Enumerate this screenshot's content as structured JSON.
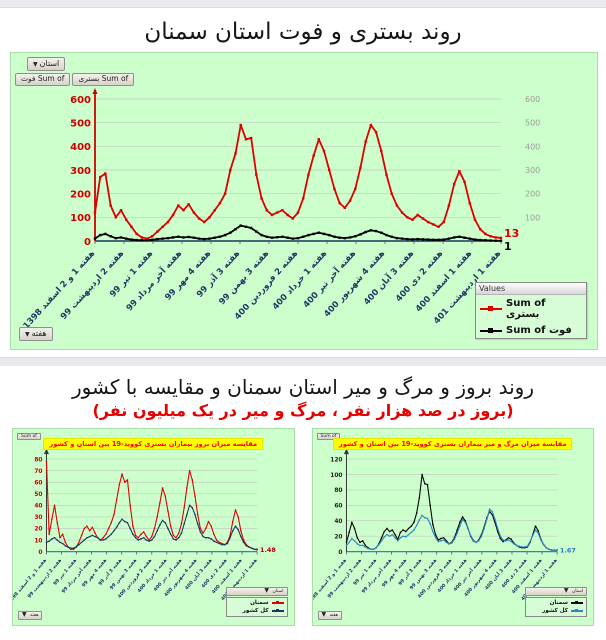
{
  "page": {
    "title1": "روند بستری و فوت استان سمنان",
    "title2": "روند بروز و مرگ و میر استان سمنان و مقایسه با کشور",
    "subtitle2": "(بروز در صد هزار نفر ، مرگ و میر در یک میلیون نفر)"
  },
  "main_chart": {
    "province_filter": "استان",
    "week_filter": "هفته",
    "value_buttons": [
      "Sum of فوت",
      "Sum of بستری"
    ],
    "legend_header": "Values"
  },
  "small_charts": {
    "value_button": "Sum of",
    "province_filter": "استان",
    "week_filter": "هفته"
  },
  "colors": {
    "panel_green": "#ccffcc",
    "title_yellow": "#ffff00",
    "accent_red": "#dd0000",
    "subtitle_red": "#e60000",
    "axis_label_navy": "#1f3864",
    "country_navy": "#17375e",
    "country_blue": "#2e86c1"
  },
  "chart_data": [
    {
      "type": "line",
      "title": "روند بستری و فوت استان سمنان",
      "xlabel": "هفته",
      "ylabel": "",
      "ylim": [
        0,
        600
      ],
      "ytick_step": 100,
      "grid": true,
      "legend_position": "bottom-right",
      "legend_header": "Values",
      "categories": [
        "هفته 1 و 2 اسفند 1398",
        "هفته 2 اردیبهشت 99",
        "هفته 1 تیر 99",
        "هفته آخر مرداد 99",
        "هفته 4 مهر 99",
        "هفته 3 آذر 99",
        "هفته 3 بهمن 99",
        "هفته 2 فروردین 400",
        "هفته 1 خرداد 400",
        "هفته آخر تیر 400",
        "هفته 4 شهریور 400",
        "هفته 3 آبان 400",
        "هفته 2 دی 400",
        "هفته 1 اسفند 400",
        "هفته 1 اردیبهشت 401"
      ],
      "series": [
        {
          "name": "Sum of بستری",
          "color": "#dd0000",
          "end_label": "13",
          "values": [
            120,
            270,
            285,
            150,
            100,
            130,
            90,
            60,
            30,
            15,
            10,
            20,
            40,
            60,
            80,
            110,
            150,
            130,
            155,
            120,
            95,
            80,
            100,
            130,
            160,
            200,
            300,
            370,
            490,
            430,
            435,
            280,
            180,
            130,
            110,
            120,
            130,
            110,
            95,
            120,
            180,
            280,
            360,
            430,
            380,
            300,
            220,
            160,
            140,
            170,
            220,
            310,
            420,
            490,
            460,
            380,
            280,
            200,
            150,
            120,
            100,
            90,
            110,
            95,
            80,
            70,
            60,
            80,
            150,
            240,
            295,
            250,
            160,
            90,
            50,
            30,
            20,
            15,
            13
          ]
        },
        {
          "name": "Sum of فوت",
          "color": "#000000",
          "end_label": "1",
          "values": [
            10,
            25,
            30,
            20,
            12,
            15,
            10,
            6,
            4,
            3,
            3,
            5,
            8,
            10,
            12,
            15,
            18,
            15,
            17,
            14,
            10,
            8,
            10,
            14,
            18,
            25,
            35,
            50,
            65,
            60,
            55,
            40,
            25,
            18,
            14,
            16,
            18,
            14,
            10,
            12,
            18,
            25,
            30,
            35,
            30,
            25,
            18,
            14,
            12,
            15,
            20,
            28,
            38,
            45,
            42,
            35,
            25,
            18,
            12,
            10,
            8,
            7,
            8,
            7,
            6,
            5,
            5,
            6,
            10,
            15,
            18,
            14,
            10,
            6,
            4,
            3,
            2,
            1,
            1
          ]
        }
      ]
    },
    {
      "type": "line",
      "title": "مقایسه میزان بروز بیماران بستری کووید-19 بین استان و کشور",
      "xlabel": "هفته",
      "ylabel": "",
      "ylim": [
        0,
        80
      ],
      "ytick_step": 10,
      "grid": true,
      "legend_position": "bottom-right",
      "categories": [
        "هفته 1 و 2 اسفند 1398",
        "هفته 2 اردیبهشت 99",
        "هفته 1 تیر 99",
        "هفته آخر مرداد 99",
        "هفته 4 مهر 99",
        "هفته 3 آذر 99",
        "هفته 3 بهمن 99",
        "هفته 2 فروردین 400",
        "هفته 1 خرداد 400",
        "هفته آخر تیر 400",
        "هفته 4 شهریور 400",
        "هفته 3 آبان 400",
        "هفته 2 دی 400",
        "هفته 1 اسفند 400",
        "هفته 1 اردیبهشت 401"
      ],
      "series": [
        {
          "name": "سمنان",
          "color": "#dd0000",
          "end_label": "1.48",
          "end_label_color": "#b00000",
          "values": [
            78,
            15,
            28,
            40,
            25,
            12,
            15,
            8,
            4,
            2,
            2,
            4,
            8,
            14,
            20,
            22,
            18,
            21,
            16,
            12,
            10,
            12,
            15,
            20,
            25,
            32,
            45,
            58,
            67,
            60,
            62,
            40,
            22,
            14,
            12,
            15,
            17,
            13,
            10,
            13,
            20,
            30,
            42,
            55,
            48,
            35,
            22,
            14,
            12,
            16,
            24,
            38,
            55,
            70,
            62,
            48,
            32,
            20,
            16,
            20,
            26,
            22,
            15,
            10,
            8,
            7,
            6,
            8,
            14,
            26,
            36,
            30,
            18,
            10,
            6,
            4,
            3,
            2,
            1.48
          ]
        },
        {
          "name": "کل کشور",
          "color": "#17375e",
          "values": [
            8,
            9,
            11,
            12,
            10,
            8,
            7,
            5,
            4,
            3,
            3,
            4,
            6,
            8,
            10,
            12,
            13,
            14,
            13,
            12,
            10,
            10,
            11,
            13,
            15,
            18,
            21,
            25,
            28,
            26,
            25,
            20,
            15,
            12,
            10,
            11,
            12,
            10,
            9,
            10,
            13,
            18,
            23,
            27,
            25,
            20,
            15,
            11,
            10,
            12,
            16,
            24,
            32,
            40,
            38,
            32,
            24,
            17,
            13,
            12,
            12,
            11,
            9,
            8,
            7,
            6,
            6,
            7,
            12,
            18,
            22,
            19,
            13,
            8,
            5,
            4,
            3,
            2,
            2
          ]
        }
      ]
    },
    {
      "type": "line",
      "title": "مقایسه میزان مرگ و میر بیماران بستری کووید-19 بین استان و کشور",
      "xlabel": "هفته",
      "ylabel": "",
      "ylim": [
        0,
        120
      ],
      "ytick_step": 20,
      "grid": true,
      "legend_position": "bottom-right",
      "categories": [
        "هفته 1 و 2 اسفند 1398",
        "هفته 2 اردیبهشت 99",
        "هفته 1 تیر 99",
        "هفته آخر مرداد 99",
        "هفته 4 مهر 99",
        "هفته 3 آذر 99",
        "هفته 3 بهمن 99",
        "هفته 2 فروردین 400",
        "هفته 1 خرداد 400",
        "هفته آخر تیر 400",
        "هفته 4 شهریور 400",
        "هفته 3 آبان 400",
        "هفته 2 دی 400",
        "هفته 1 اسفند 400",
        "هفته 1 اردیبهشت 401"
      ],
      "series": [
        {
          "name": "سمنان",
          "color": "#000000",
          "values": [
            12,
            25,
            38,
            30,
            18,
            12,
            14,
            8,
            5,
            3,
            3,
            5,
            10,
            18,
            26,
            30,
            26,
            28,
            22,
            16,
            25,
            28,
            26,
            30,
            33,
            38,
            50,
            70,
            100,
            88,
            87,
            60,
            35,
            22,
            15,
            17,
            18,
            14,
            10,
            12,
            18,
            28,
            38,
            45,
            40,
            30,
            20,
            14,
            12,
            15,
            22,
            32,
            44,
            52,
            48,
            38,
            26,
            17,
            13,
            15,
            18,
            16,
            11,
            8,
            6,
            5,
            5,
            6,
            12,
            22,
            33,
            27,
            16,
            9,
            5,
            3,
            2,
            2,
            2
          ]
        },
        {
          "name": "کل کشور",
          "color": "#2e86c1",
          "end_label": "1.67",
          "end_label_color": "#2e75b6",
          "values": [
            8,
            12,
            17,
            14,
            10,
            8,
            8,
            6,
            4,
            3,
            3,
            5,
            9,
            14,
            19,
            22,
            20,
            22,
            18,
            14,
            18,
            20,
            19,
            22,
            25,
            28,
            34,
            41,
            47,
            44,
            43,
            36,
            26,
            18,
            13,
            14,
            15,
            12,
            10,
            11,
            16,
            24,
            33,
            42,
            38,
            30,
            21,
            15,
            12,
            14,
            20,
            30,
            42,
            55,
            52,
            42,
            30,
            20,
            15,
            14,
            15,
            13,
            10,
            8,
            7,
            6,
            6,
            7,
            13,
            21,
            28,
            24,
            15,
            9,
            5,
            3,
            2,
            2,
            1.67
          ]
        }
      ]
    }
  ]
}
